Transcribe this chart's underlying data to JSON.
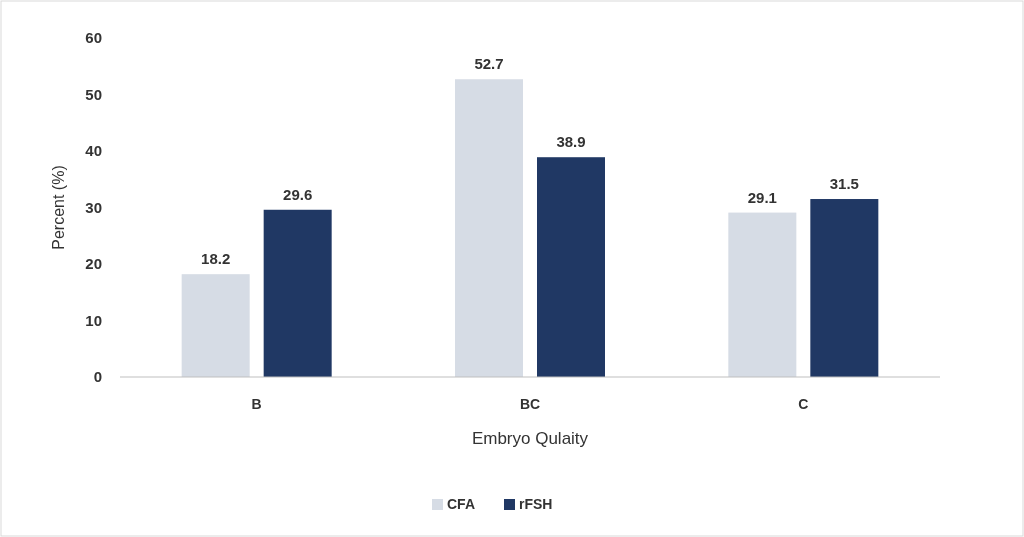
{
  "chart_data": {
    "type": "bar",
    "xlabel": "Embryo Qulaity",
    "ylabel": "Percent (%)",
    "categories": [
      "B",
      "BC",
      "C"
    ],
    "series": [
      {
        "name": "CFA",
        "color": "#d6dce5",
        "values": [
          18.2,
          52.7,
          29.1
        ]
      },
      {
        "name": "rFSH",
        "color": "#203864",
        "values": [
          29.6,
          38.9,
          31.5
        ]
      }
    ],
    "ylim": [
      0,
      60
    ],
    "yticks": [
      0,
      10,
      20,
      30,
      40,
      50,
      60
    ],
    "data_labels": true,
    "legend": "bottom",
    "grid": false
  }
}
